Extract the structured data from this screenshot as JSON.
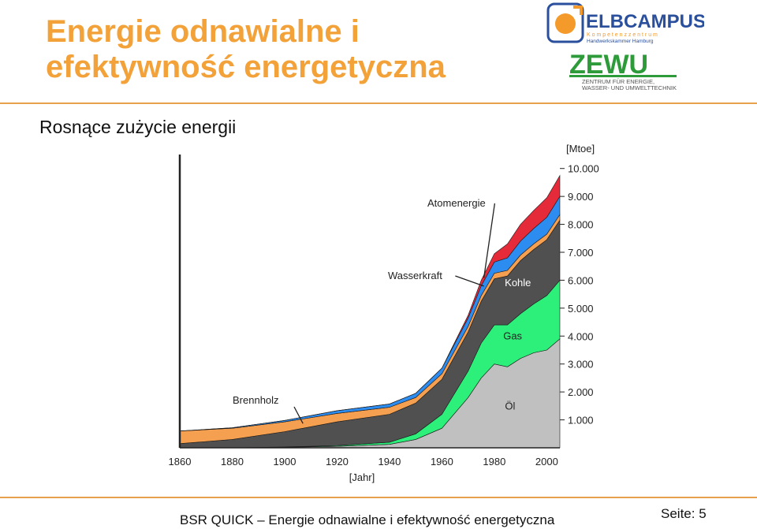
{
  "slide": {
    "title": "Energie odnawialne i efektywność energetyczna",
    "subtitle": "Rosnące zużycie energii",
    "footer": "BSR QUICK  – Energie odnawialne i efektywność energetyczna",
    "page_label": "Seite: 5"
  },
  "logos": {
    "elbcampus": {
      "name": "ELBCAMPUS",
      "tagline1": "K o m p e t e n z z e n t r u m",
      "tagline2": "Handwerkskammer Hamburg"
    },
    "zewu": {
      "name": "ZEWU",
      "line1": "ZENTRUM FÜR ENERGIE,",
      "line2": "WASSER- UND UMWELTTECHNIK"
    }
  },
  "colors": {
    "accent": "#f3a23a",
    "oil": "#c0c0c0",
    "gas": "#2df07a",
    "coal": "#505050",
    "biomass": "#f5a050",
    "hydro": "#2d8cf0",
    "nuclear": "#e52a3a"
  },
  "chart_data": {
    "type": "area",
    "stacked": true,
    "x": [
      1860,
      1880,
      1900,
      1920,
      1940,
      1950,
      1960,
      1970,
      1975,
      1980,
      1985,
      1990,
      1995,
      2000,
      2005
    ],
    "series": [
      {
        "name": "Öl",
        "color": "#c0c0c0",
        "values": [
          0,
          0,
          20,
          50,
          120,
          300,
          700,
          1800,
          2500,
          3000,
          2900,
          3200,
          3400,
          3500,
          3900
        ]
      },
      {
        "name": "Gas",
        "color": "#2df07a",
        "values": [
          0,
          0,
          10,
          30,
          80,
          200,
          500,
          950,
          1250,
          1400,
          1500,
          1600,
          1750,
          1950,
          2100
        ]
      },
      {
        "name": "Kohle",
        "color": "#505050",
        "values": [
          150,
          300,
          550,
          850,
          1000,
          1100,
          1250,
          1400,
          1500,
          1650,
          1750,
          1900,
          1950,
          2000,
          2150
        ]
      },
      {
        "name": "Brennholz",
        "color": "#f5a050",
        "values": [
          450,
          400,
          350,
          300,
          250,
          200,
          200,
          200,
          200,
          200,
          200,
          200,
          200,
          200,
          200
        ]
      },
      {
        "name": "Wasserkraft",
        "color": "#2d8cf0",
        "values": [
          0,
          20,
          50,
          100,
          120,
          150,
          200,
          300,
          350,
          400,
          450,
          500,
          550,
          600,
          650
        ]
      },
      {
        "name": "Atomenergie",
        "color": "#e52a3a",
        "values": [
          0,
          0,
          0,
          0,
          0,
          0,
          0,
          100,
          200,
          300,
          500,
          600,
          650,
          700,
          750
        ]
      }
    ],
    "xlabel": "[Jahr]",
    "ylabel": "[Mtoe]",
    "xticks": [
      1860,
      1880,
      1900,
      1920,
      1940,
      1960,
      1980,
      2000
    ],
    "xtick_labels": [
      "1860",
      "1880",
      "1900",
      "1920",
      "1940",
      "1960",
      "1980",
      "2000"
    ],
    "yticks": [
      1000,
      2000,
      3000,
      4000,
      5000,
      6000,
      7000,
      8000,
      9000,
      10000
    ],
    "ytick_labels": [
      "1.000",
      "2.000",
      "3.000",
      "4.000",
      "5.000",
      "6.000",
      "7.000",
      "8.000",
      "9.000",
      "10.000"
    ],
    "xlim": [
      1860,
      2005
    ],
    "ylim": [
      0,
      10500
    ],
    "annotations": [
      {
        "text": "Atomenergie",
        "series": "Atomenergie",
        "pointer_year": 1976
      },
      {
        "text": "Wasserkraft",
        "series": "Wasserkraft",
        "pointer_year": 1976
      },
      {
        "text": "Kohle",
        "series": "Kohle",
        "inside_year": 1992
      },
      {
        "text": "Gas",
        "series": "Gas",
        "inside_year": 1990
      },
      {
        "text": "Öl",
        "series": "Öl",
        "inside_year": 1986
      },
      {
        "text": "Brennholz",
        "series": "Brennholz",
        "pointer_year": 1907
      }
    ]
  }
}
